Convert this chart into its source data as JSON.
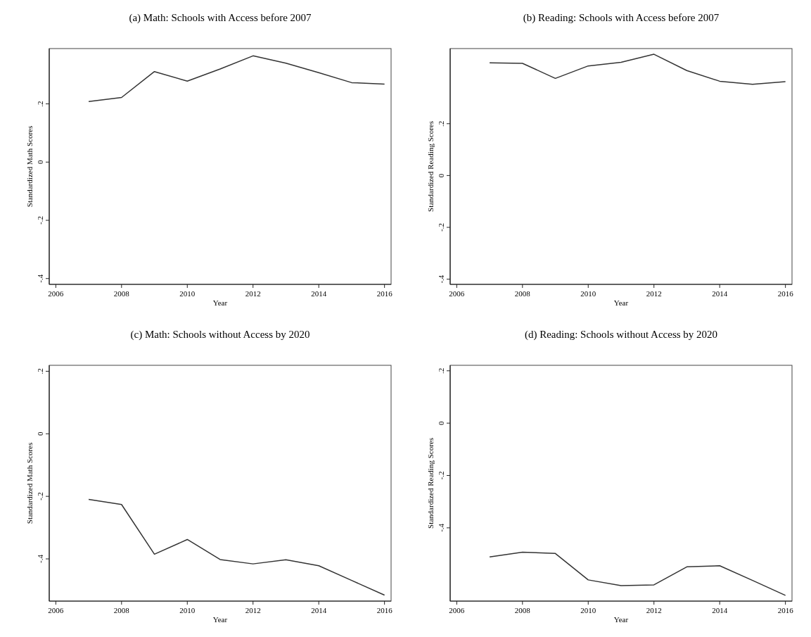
{
  "chart_data": [
    {
      "type": "line",
      "title": "(a) Math: Schools with Access before 2007",
      "xlabel": "Year",
      "ylabel": "Standardized Math Scores",
      "x": [
        2007,
        2008,
        2009,
        2010,
        2011,
        2012,
        2013,
        2014,
        2015,
        2016
      ],
      "series": [
        {
          "color": "#333333",
          "values": [
            0.208,
            0.222,
            0.311,
            0.278,
            0.32,
            0.365,
            0.34,
            0.307,
            0.273,
            0.268
          ]
        }
      ],
      "xlim": [
        2005.8,
        2016.2
      ],
      "xticks": [
        2006,
        2008,
        2010,
        2012,
        2014,
        2016
      ],
      "ylim": [
        -0.42,
        0.39
      ],
      "yticks": [
        {
          "value": -0.4,
          "label": "-.4"
        },
        {
          "value": -0.2,
          "label": "-.2"
        },
        {
          "value": 0,
          "label": "0"
        },
        {
          "value": 0.2,
          "label": ".2"
        }
      ]
    },
    {
      "type": "line",
      "title": "(b) Reading: Schools with Access before 2007",
      "xlabel": "Year",
      "ylabel": "Standardized Reading Scores",
      "x": [
        2007,
        2008,
        2009,
        2010,
        2011,
        2012,
        2013,
        2014,
        2015,
        2016
      ],
      "series": [
        {
          "color": "#333333",
          "values": [
            0.435,
            0.433,
            0.375,
            0.423,
            0.437,
            0.468,
            0.405,
            0.364,
            0.352,
            0.362
          ]
        }
      ],
      "xlim": [
        2005.8,
        2016.2
      ],
      "xticks": [
        2006,
        2008,
        2010,
        2012,
        2014,
        2016
      ],
      "ylim": [
        -0.42,
        0.49
      ],
      "yticks": [
        {
          "value": -0.4,
          "label": "-.4"
        },
        {
          "value": -0.2,
          "label": "-.2"
        },
        {
          "value": 0,
          "label": "0"
        },
        {
          "value": 0.2,
          "label": ".2"
        }
      ]
    },
    {
      "type": "line",
      "title": "(c) Math: Schools without Access by 2020",
      "xlabel": "Year",
      "ylabel": "Standardized Math Scores",
      "x": [
        2007,
        2008,
        2009,
        2010,
        2011,
        2012,
        2013,
        2014,
        2015,
        2016
      ],
      "series": [
        {
          "color": "#333333",
          "values": [
            -0.21,
            -0.226,
            -0.385,
            -0.338,
            -0.402,
            -0.416,
            -0.403,
            -0.422,
            -0.469,
            -0.516
          ]
        }
      ],
      "xlim": [
        2005.8,
        2016.2
      ],
      "xticks": [
        2006,
        2008,
        2010,
        2012,
        2014,
        2016
      ],
      "ylim": [
        -0.535,
        0.219
      ],
      "yticks": [
        {
          "value": -0.4,
          "label": "-.4"
        },
        {
          "value": -0.2,
          "label": "-.2"
        },
        {
          "value": 0,
          "label": "0"
        },
        {
          "value": 0.2,
          "label": ".2"
        }
      ]
    },
    {
      "type": "line",
      "title": "(d) Reading: Schools without Access by 2020",
      "xlabel": "Year",
      "ylabel": "Standardized Reading Scores",
      "x": [
        2007,
        2008,
        2009,
        2010,
        2011,
        2012,
        2013,
        2014,
        2015,
        2016
      ],
      "series": [
        {
          "color": "#333333",
          "values": [
            -0.511,
            -0.493,
            -0.498,
            -0.599,
            -0.621,
            -0.618,
            -0.549,
            -0.545,
            -0.601,
            -0.658
          ]
        }
      ],
      "xlim": [
        2005.8,
        2016.2
      ],
      "xticks": [
        2006,
        2008,
        2010,
        2012,
        2014,
        2016
      ],
      "ylim": [
        -0.68,
        0.221
      ],
      "yticks": [
        {
          "value": -0.4,
          "label": "-.4"
        },
        {
          "value": -0.2,
          "label": "-.2"
        },
        {
          "value": 0,
          "label": "0"
        },
        {
          "value": 0.2,
          "label": ".2"
        }
      ]
    }
  ]
}
